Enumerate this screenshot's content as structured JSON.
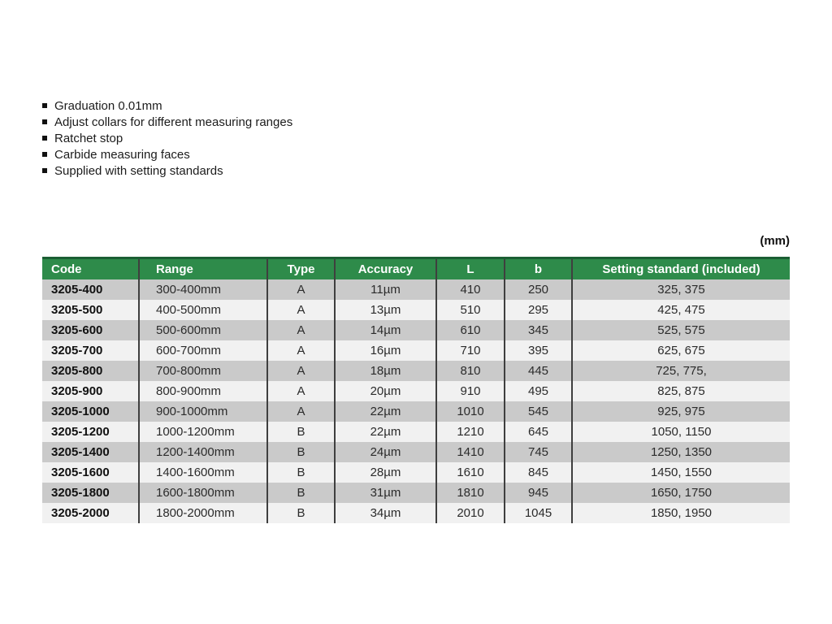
{
  "features": {
    "items": [
      "Graduation 0.01mm",
      "Adjust collars for different measuring ranges",
      "Ratchet stop",
      "Carbide measuring faces",
      "Supplied with setting standards"
    ]
  },
  "unit_note": "(mm)",
  "table": {
    "columns": [
      "Code",
      "Range",
      "Type",
      "Accuracy",
      "L",
      "b",
      "Setting standard (included)"
    ],
    "rows": [
      [
        "3205-400",
        "300-400mm",
        "A",
        "11µm",
        "410",
        "250",
        "325, 375"
      ],
      [
        "3205-500",
        "400-500mm",
        "A",
        "13µm",
        "510",
        "295",
        "425, 475"
      ],
      [
        "3205-600",
        "500-600mm",
        "A",
        "14µm",
        "610",
        "345",
        "525, 575"
      ],
      [
        "3205-700",
        "600-700mm",
        "A",
        "16µm",
        "710",
        "395",
        "625, 675"
      ],
      [
        "3205-800",
        "700-800mm",
        "A",
        "18µm",
        "810",
        "445",
        "725, 775,"
      ],
      [
        "3205-900",
        "800-900mm",
        "A",
        "20µm",
        "910",
        "495",
        "825, 875"
      ],
      [
        "3205-1000",
        "900-1000mm",
        "A",
        "22µm",
        "1010",
        "545",
        "925, 975"
      ],
      [
        "3205-1200",
        "1000-1200mm",
        "B",
        "22µm",
        "1210",
        "645",
        "1050, 1150"
      ],
      [
        "3205-1400",
        "1200-1400mm",
        "B",
        "24µm",
        "1410",
        "745",
        "1250, 1350"
      ],
      [
        "3205-1600",
        "1400-1600mm",
        "B",
        "28µm",
        "1610",
        "845",
        "1450, 1550"
      ],
      [
        "3205-1800",
        "1600-1800mm",
        "B",
        "31µm",
        "1810",
        "945",
        "1650, 1750"
      ],
      [
        "3205-2000",
        "1800-2000mm",
        "B",
        "34µm",
        "2010",
        "1045",
        "1850, 1950"
      ]
    ]
  },
  "colors": {
    "header_green": "#2e8b4a",
    "header_green_dark_edge": "#1b5e33",
    "row_stripe_dark": "#cacaca",
    "row_stripe_light": "#f1f1f1",
    "grid_line": "#3f3f3f"
  }
}
